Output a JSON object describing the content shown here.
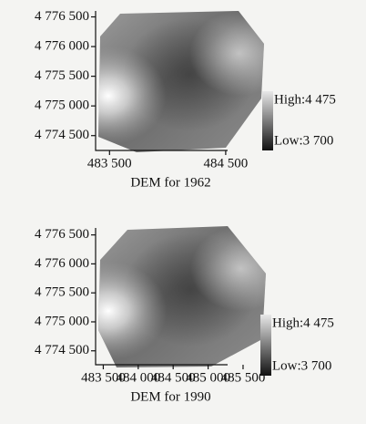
{
  "chart_data": [
    {
      "type": "raster",
      "xlabel": "DEM for 1962",
      "xlim": [
        483380,
        484830
      ],
      "ylim": [
        4774250,
        4776600
      ],
      "xticks": [
        {
          "value": 483500,
          "label": "483 500"
        },
        {
          "value": 484500,
          "label": "484 500"
        }
      ],
      "yticks": [
        {
          "value": 4776500,
          "label": "4 776 500"
        },
        {
          "value": 4776000,
          "label": "4 776 000"
        },
        {
          "value": 4775500,
          "label": "4 775 500"
        },
        {
          "value": 4775000,
          "label": "4 775 000"
        },
        {
          "value": 4774500,
          "label": "4 774 500"
        }
      ],
      "colorbar": [
        {
          "value": 4475,
          "label": "High:4 475"
        },
        {
          "value": 3700,
          "label": "Low:3 700"
        }
      ]
    },
    {
      "type": "raster",
      "xlabel": "DEM for 1990",
      "xlim": [
        483390,
        485800
      ],
      "ylim": [
        4774260,
        4776620
      ],
      "xticks": [
        {
          "value": 483500,
          "label": "483 500"
        },
        {
          "value": 484000,
          "label": "484 000"
        },
        {
          "value": 484500,
          "label": "484 500"
        },
        {
          "value": 485000,
          "label": "485 000"
        },
        {
          "value": 485500,
          "label": "485 500"
        }
      ],
      "yticks": [
        {
          "value": 4776500,
          "label": "4 776 500"
        },
        {
          "value": 4776000,
          "label": "4 776 000"
        },
        {
          "value": 4775500,
          "label": "4 775 500"
        },
        {
          "value": 4775000,
          "label": "4 775 000"
        },
        {
          "value": 4774500,
          "label": "4 774 500"
        }
      ],
      "colorbar": [
        {
          "value": 4475,
          "label": "High:4 475"
        },
        {
          "value": 3700,
          "label": "Low:3 700"
        }
      ]
    }
  ]
}
